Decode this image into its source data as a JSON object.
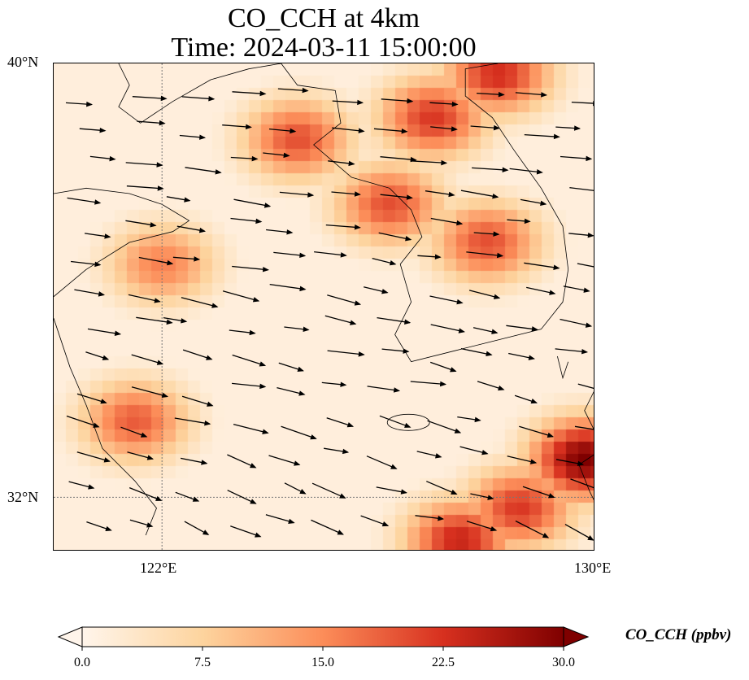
{
  "chart_data": {
    "type": "heatmap",
    "title": "CO_CCH at 4km",
    "subtitle": "Time: 2024-03-11 15:00:00",
    "xlabel": "",
    "ylabel": "",
    "x_ticks": [
      "122°E",
      "130°E"
    ],
    "y_ticks": [
      "40°N",
      "32°N"
    ],
    "xlim": [
      120,
      130
    ],
    "ylim": [
      31,
      40
    ],
    "gridlines": "dotted at 122°E and 32°N",
    "colorbar": {
      "label": "CO_CCH (ppbv)",
      "ticks": [
        "0.0",
        "7.5",
        "15.0",
        "22.5",
        "30.0"
      ],
      "range": [
        0,
        30
      ],
      "colormap": "OrRd",
      "extend": "both",
      "placement": "bottom"
    },
    "field_hotspots": [
      {
        "lon": 124.5,
        "lat": 38.6,
        "value": 20
      },
      {
        "lon": 127.0,
        "lat": 39.0,
        "value": 22
      },
      {
        "lon": 128.2,
        "lat": 39.8,
        "value": 23
      },
      {
        "lon": 126.2,
        "lat": 37.4,
        "value": 20
      },
      {
        "lon": 128.0,
        "lat": 36.7,
        "value": 20
      },
      {
        "lon": 122.0,
        "lat": 36.3,
        "value": 16
      },
      {
        "lon": 121.5,
        "lat": 33.4,
        "value": 19
      },
      {
        "lon": 129.8,
        "lat": 32.7,
        "value": 30
      },
      {
        "lon": 128.6,
        "lat": 31.8,
        "value": 22
      },
      {
        "lon": 127.5,
        "lat": 31.2,
        "value": 24
      }
    ],
    "wind_vectors": "westerly to west-northwesterly flow across the domain"
  }
}
